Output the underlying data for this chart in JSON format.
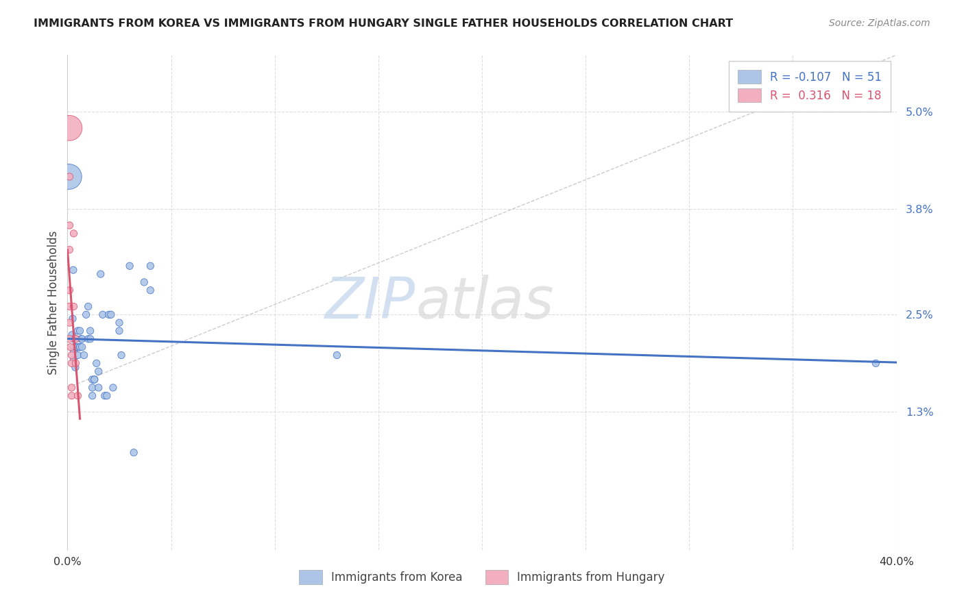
{
  "title": "IMMIGRANTS FROM KOREA VS IMMIGRANTS FROM HUNGARY SINGLE FATHER HOUSEHOLDS CORRELATION CHART",
  "source": "Source: ZipAtlas.com",
  "ylabel": "Single Father Households",
  "ylabel_right_ticks": [
    "1.3%",
    "2.5%",
    "3.8%",
    "5.0%"
  ],
  "ylabel_right_values": [
    0.013,
    0.025,
    0.038,
    0.05
  ],
  "xtick_labels": [
    "0.0%",
    "",
    "",
    "",
    "",
    "",
    "",
    "",
    "40.0%"
  ],
  "xmin": 0.0,
  "xmax": 0.4,
  "ymin": -0.004,
  "ymax": 0.057,
  "legend_korea_r": "-0.107",
  "legend_korea_n": "51",
  "legend_hungary_r": "0.316",
  "legend_hungary_n": "18",
  "korea_color": "#adc6e8",
  "hungary_color": "#f2afc0",
  "korea_line_color": "#4472c4",
  "hungary_line_color": "#d9546e",
  "watermark_zip": "ZIP",
  "watermark_atlas": "atlas",
  "korea_scatter": [
    [
      0.0008,
      0.042
    ],
    [
      0.0022,
      0.0225
    ],
    [
      0.0025,
      0.0245
    ],
    [
      0.0028,
      0.0305
    ],
    [
      0.003,
      0.022
    ],
    [
      0.003,
      0.021
    ],
    [
      0.003,
      0.0195
    ],
    [
      0.003,
      0.0205
    ],
    [
      0.0038,
      0.0185
    ],
    [
      0.004,
      0.022
    ],
    [
      0.004,
      0.021
    ],
    [
      0.005,
      0.021
    ],
    [
      0.005,
      0.02
    ],
    [
      0.005,
      0.023
    ],
    [
      0.006,
      0.023
    ],
    [
      0.006,
      0.021
    ],
    [
      0.006,
      0.021
    ],
    [
      0.0065,
      0.022
    ],
    [
      0.007,
      0.022
    ],
    [
      0.007,
      0.021
    ],
    [
      0.008,
      0.02
    ],
    [
      0.009,
      0.025
    ],
    [
      0.01,
      0.026
    ],
    [
      0.01,
      0.022
    ],
    [
      0.011,
      0.023
    ],
    [
      0.011,
      0.022
    ],
    [
      0.012,
      0.017
    ],
    [
      0.012,
      0.016
    ],
    [
      0.012,
      0.015
    ],
    [
      0.013,
      0.017
    ],
    [
      0.013,
      0.017
    ],
    [
      0.014,
      0.019
    ],
    [
      0.015,
      0.018
    ],
    [
      0.015,
      0.016
    ],
    [
      0.016,
      0.03
    ],
    [
      0.017,
      0.025
    ],
    [
      0.018,
      0.015
    ],
    [
      0.019,
      0.015
    ],
    [
      0.02,
      0.025
    ],
    [
      0.021,
      0.025
    ],
    [
      0.022,
      0.016
    ],
    [
      0.025,
      0.024
    ],
    [
      0.025,
      0.023
    ],
    [
      0.026,
      0.02
    ],
    [
      0.03,
      0.031
    ],
    [
      0.032,
      0.008
    ],
    [
      0.037,
      0.029
    ],
    [
      0.04,
      0.031
    ],
    [
      0.04,
      0.028
    ],
    [
      0.13,
      0.02
    ],
    [
      0.39,
      0.019
    ]
  ],
  "hungary_scatter": [
    [
      0.001,
      0.048
    ],
    [
      0.001,
      0.042
    ],
    [
      0.001,
      0.036
    ],
    [
      0.001,
      0.033
    ],
    [
      0.001,
      0.028
    ],
    [
      0.001,
      0.026
    ],
    [
      0.001,
      0.024
    ],
    [
      0.001,
      0.022
    ],
    [
      0.0015,
      0.021
    ],
    [
      0.002,
      0.02
    ],
    [
      0.002,
      0.019
    ],
    [
      0.002,
      0.016
    ],
    [
      0.002,
      0.015
    ],
    [
      0.003,
      0.035
    ],
    [
      0.003,
      0.026
    ],
    [
      0.004,
      0.022
    ],
    [
      0.004,
      0.019
    ],
    [
      0.005,
      0.015
    ]
  ],
  "korea_bubble_sizes": [
    700,
    55,
    55,
    55,
    55,
    55,
    55,
    55,
    55,
    55,
    55,
    55,
    55,
    55,
    55,
    55,
    55,
    55,
    55,
    55,
    55,
    55,
    55,
    55,
    55,
    55,
    55,
    55,
    55,
    55,
    55,
    55,
    55,
    55,
    55,
    55,
    55,
    55,
    55,
    55,
    55,
    55,
    55,
    55,
    55,
    55,
    55,
    55,
    55,
    55,
    55
  ],
  "hungary_bubble_sizes": [
    700,
    55,
    55,
    55,
    55,
    55,
    55,
    55,
    55,
    55,
    55,
    55,
    55,
    55,
    55,
    55,
    55,
    55
  ],
  "korea_trendline": [
    0.0,
    0.4
  ],
  "hungary_trendline_x": [
    0.0,
    0.006
  ],
  "diag_line_x": [
    0.0,
    0.4
  ],
  "diag_line_y": [
    0.016,
    0.057
  ]
}
